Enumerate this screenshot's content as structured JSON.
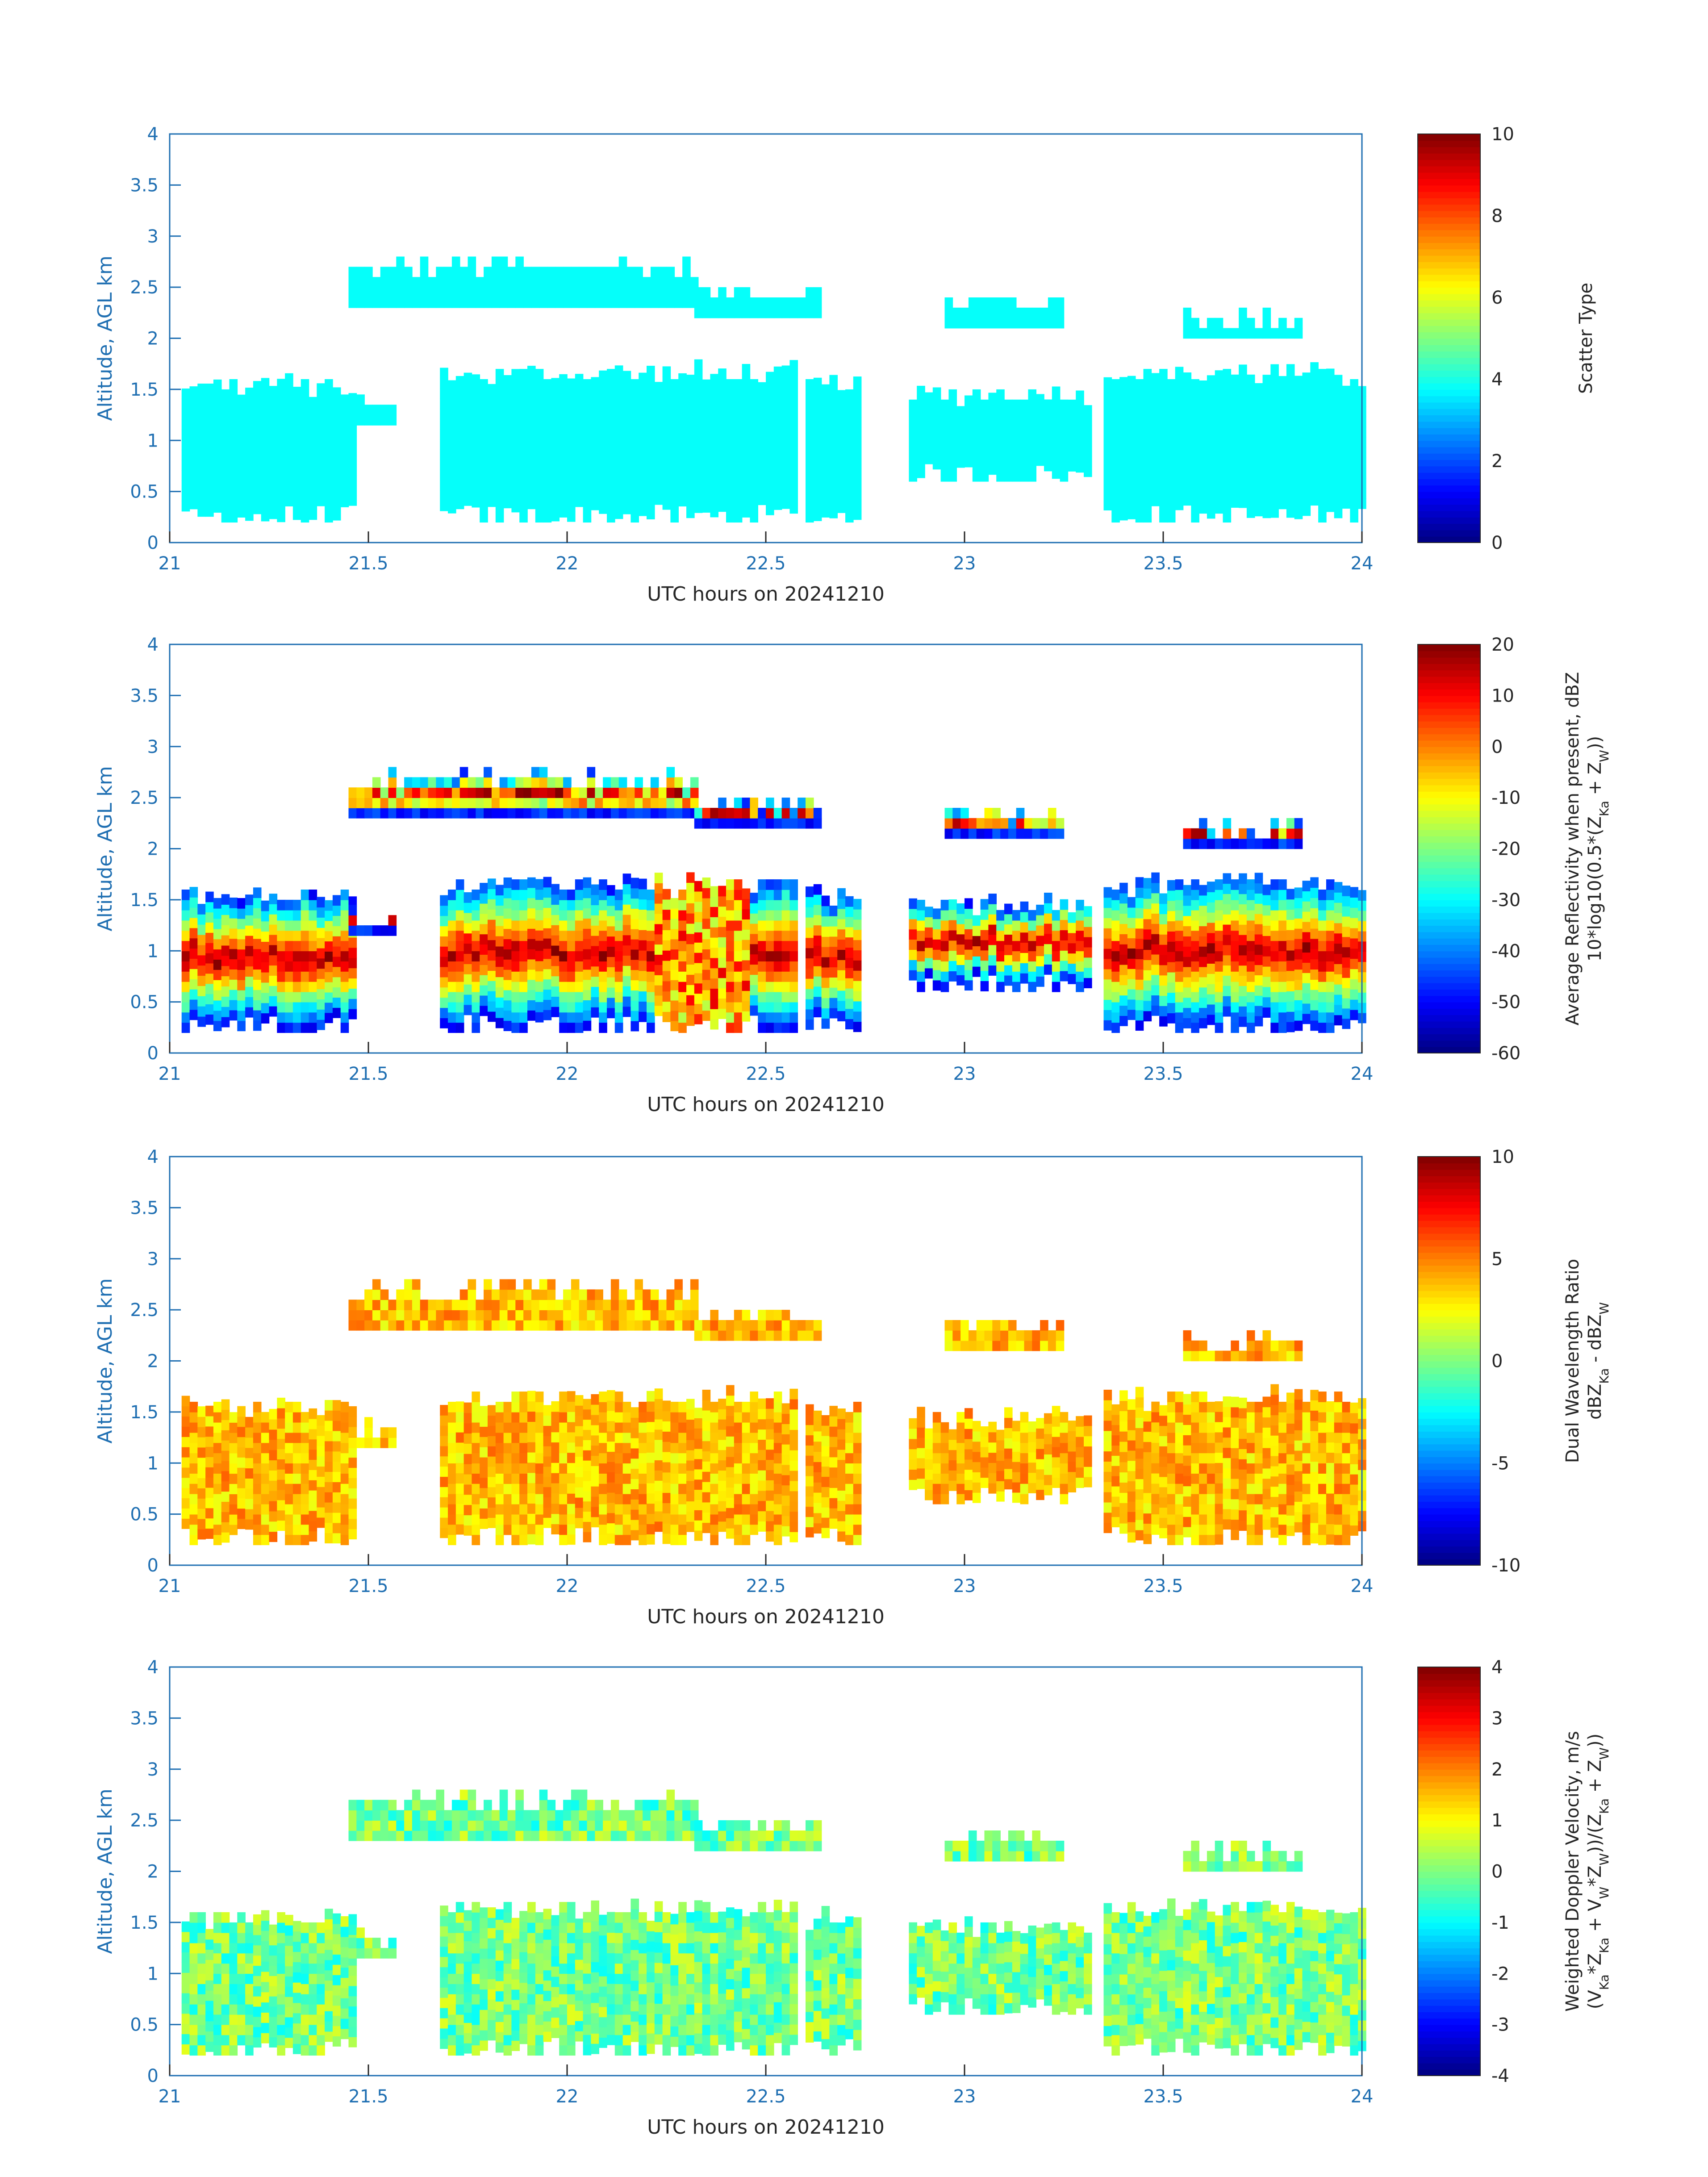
{
  "chart_data": [
    {
      "type": "heatmap",
      "xlabel": "UTC hours on 20241210",
      "ylabel": "Altitude, AGL km",
      "xlim": [
        21,
        24
      ],
      "ylim": [
        0,
        4
      ],
      "x_ticks": [
        "21",
        "21.5",
        "22",
        "22.5",
        "23",
        "23.5",
        "24"
      ],
      "y_ticks": [
        "0",
        "0.5",
        "1",
        "1.5",
        "2",
        "2.5",
        "3",
        "3.5",
        "4"
      ],
      "colorbar": {
        "label": "Scatter Type",
        "range": [
          0,
          10
        ],
        "ticks": [
          "0",
          "2",
          "4",
          "6",
          "8",
          "10"
        ],
        "colormap": "jet"
      }
    },
    {
      "type": "heatmap",
      "xlabel": "UTC hours on 20241210",
      "ylabel": "Altitude, AGL km",
      "xlim": [
        21,
        24
      ],
      "ylim": [
        0,
        4
      ],
      "x_ticks": [
        "21",
        "21.5",
        "22",
        "22.5",
        "23",
        "23.5",
        "24"
      ],
      "y_ticks": [
        "0",
        "0.5",
        "1",
        "1.5",
        "2",
        "2.5",
        "3",
        "3.5",
        "4"
      ],
      "colorbar": {
        "label": "Average Reflectivity when present, dBZ",
        "label2": "10*log10(0.5*(Z",
        "label2_sub1": "Ka",
        "label2_mid": " + Z",
        "label2_sub2": "W",
        "label2_end": "))",
        "range": [
          -60,
          20
        ],
        "ticks": [
          "-60",
          "-50",
          "-40",
          "-30",
          "-20",
          "-10",
          "0",
          "10",
          "20"
        ],
        "colormap": "jet"
      }
    },
    {
      "type": "heatmap",
      "xlabel": "UTC hours on 20241210",
      "ylabel": "Altitude, AGL km",
      "xlim": [
        21,
        24
      ],
      "ylim": [
        0,
        4
      ],
      "x_ticks": [
        "21",
        "21.5",
        "22",
        "22.5",
        "23",
        "23.5",
        "24"
      ],
      "y_ticks": [
        "0",
        "0.5",
        "1",
        "1.5",
        "2",
        "2.5",
        "3",
        "3.5",
        "4"
      ],
      "colorbar": {
        "label": "Dual Wavelength Ratio",
        "label2": "dBZ",
        "label2_sub1": "Ka",
        "label2_mid": " - dBZ",
        "label2_sub2": "W",
        "label2_end": "",
        "range": [
          -10,
          10
        ],
        "ticks": [
          "-10",
          "-5",
          "0",
          "5",
          "10"
        ],
        "colormap": "jet"
      }
    },
    {
      "type": "heatmap",
      "xlabel": "UTC hours on 20241210",
      "ylabel": "Altitude, AGL km",
      "xlim": [
        21,
        24
      ],
      "ylim": [
        0,
        4
      ],
      "x_ticks": [
        "21",
        "21.5",
        "22",
        "22.5",
        "23",
        "23.5",
        "24"
      ],
      "y_ticks": [
        "0",
        "0.5",
        "1",
        "1.5",
        "2",
        "2.5",
        "3",
        "3.5",
        "4"
      ],
      "colorbar": {
        "label": "Weighted Doppler Velocity, m/s",
        "label2": "(V",
        "label2_sub1": "Ka",
        "label2_mid": "*Z",
        "label2_sub2": "Ka",
        "label2_end": " + V",
        "label2_sub3": "W",
        "label2_end2": "*Z",
        "label2_sub4": "W",
        "label2_end3": "))/(Z",
        "label2_sub5": "Ka",
        "label2_end4": " + Z",
        "label2_sub6": "W",
        "label2_end5": "))",
        "range": [
          -4,
          4
        ],
        "ticks": [
          "-4",
          "-3",
          "-2",
          "-1",
          "0",
          "1",
          "2",
          "3",
          "4"
        ],
        "colormap": "jet"
      }
    }
  ],
  "cloud_layers": [
    {
      "x": [
        21.45,
        22.32
      ],
      "y": [
        2.3,
        2.65
      ]
    },
    {
      "x": [
        22.32,
        22.62
      ],
      "y": [
        2.2,
        2.4
      ]
    },
    {
      "x": [
        22.95,
        23.23
      ],
      "y": [
        2.1,
        2.3
      ]
    },
    {
      "x": [
        23.55,
        23.83
      ],
      "y": [
        2.0,
        2.15
      ]
    },
    {
      "x": [
        21.03,
        21.45
      ],
      "y": [
        0.2,
        1.5
      ]
    },
    {
      "x": [
        21.45,
        21.55
      ],
      "y": [
        1.15,
        1.3
      ]
    },
    {
      "x": [
        21.68,
        22.56
      ],
      "y": [
        0.2,
        1.6
      ]
    },
    {
      "x": [
        22.6,
        22.74
      ],
      "y": [
        0.2,
        1.5
      ]
    },
    {
      "x": [
        22.86,
        23.3
      ],
      "y": [
        0.6,
        1.4
      ]
    },
    {
      "x": [
        23.35,
        24.0
      ],
      "y": [
        0.2,
        1.6
      ]
    }
  ]
}
